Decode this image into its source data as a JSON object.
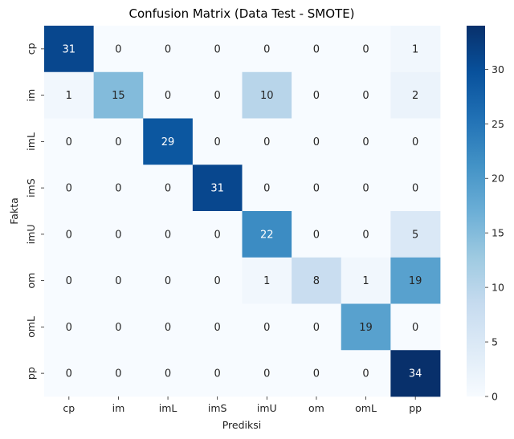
{
  "chart_data": {
    "type": "heatmap",
    "title": "Confusion Matrix (Data Test - SMOTE)",
    "xlabel": "Prediksi",
    "ylabel": "Fakta",
    "x_categories": [
      "cp",
      "im",
      "imL",
      "imS",
      "imU",
      "om",
      "omL",
      "pp"
    ],
    "y_categories": [
      "cp",
      "im",
      "imL",
      "imS",
      "imU",
      "om",
      "omL",
      "pp"
    ],
    "matrix": [
      [
        31,
        0,
        0,
        0,
        0,
        0,
        0,
        1
      ],
      [
        1,
        15,
        0,
        0,
        10,
        0,
        0,
        2
      ],
      [
        0,
        0,
        29,
        0,
        0,
        0,
        0,
        0
      ],
      [
        0,
        0,
        0,
        31,
        0,
        0,
        0,
        0
      ],
      [
        0,
        0,
        0,
        0,
        22,
        0,
        0,
        5
      ],
      [
        0,
        0,
        0,
        0,
        1,
        8,
        1,
        19
      ],
      [
        0,
        0,
        0,
        0,
        0,
        0,
        19,
        0
      ],
      [
        0,
        0,
        0,
        0,
        0,
        0,
        0,
        34
      ]
    ],
    "colormap": "Blues",
    "colorbar": {
      "range": [
        0,
        34
      ],
      "ticks": [
        0,
        5,
        10,
        15,
        20,
        25,
        30
      ]
    },
    "colors": {
      "low": "#f7fbff",
      "high": "#08306b",
      "text_dark": "#262626",
      "text_light": "#ffffff"
    }
  }
}
